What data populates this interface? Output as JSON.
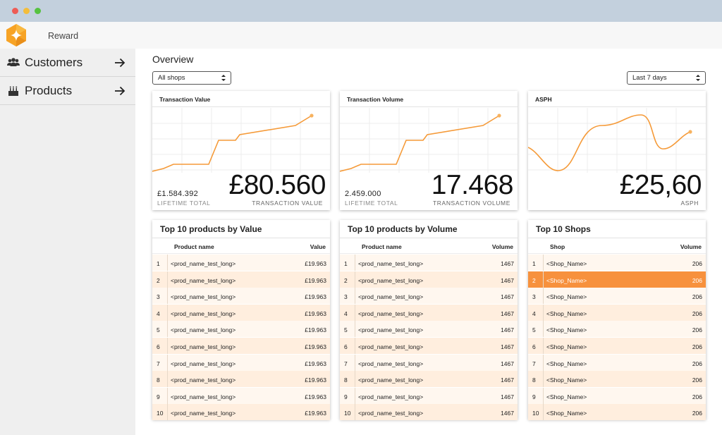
{
  "app": {
    "name": "Reward"
  },
  "sidebar": {
    "items": [
      {
        "label": "Customers",
        "icon": "users-icon"
      },
      {
        "label": "Products",
        "icon": "cake-icon"
      }
    ]
  },
  "page": {
    "title": "Overview"
  },
  "filters": {
    "shops": "All shops",
    "range": "Last 7 days"
  },
  "colors": {
    "accent": "#f7913d",
    "line": "#f59a38",
    "row_light": "#fff7ef",
    "row_dark": "#ffeede"
  },
  "kpis": [
    {
      "title": "Transaction Value",
      "value": "£80.560",
      "label": "TRANSACTION VALUE",
      "lifetime_value": "£1.584.392",
      "lifetime_label": "LIFETIME TOTAL"
    },
    {
      "title": "Transaction Volume",
      "value": "17.468",
      "label": "TRANSACTION VOLUME",
      "lifetime_value": "2.459.000",
      "lifetime_label": "LIFETIME TOTAL"
    },
    {
      "title": "ASPH",
      "value": "£25,60",
      "label": "ASPH"
    }
  ],
  "tables": [
    {
      "title": "Top 10 products by Value",
      "col_name": "Product name",
      "col_value": "Value",
      "rows": [
        {
          "idx": "1",
          "name": "<prod_name_test_long>",
          "value": "£19.963"
        },
        {
          "idx": "2",
          "name": "<prod_name_test_long>",
          "value": "£19.963"
        },
        {
          "idx": "3",
          "name": "<prod_name_test_long>",
          "value": "£19.963"
        },
        {
          "idx": "4",
          "name": "<prod_name_test_long>",
          "value": "£19.963"
        },
        {
          "idx": "5",
          "name": "<prod_name_test_long>",
          "value": "£19.963"
        },
        {
          "idx": "6",
          "name": "<prod_name_test_long>",
          "value": "£19.963"
        },
        {
          "idx": "7",
          "name": "<prod_name_test_long>",
          "value": "£19.963"
        },
        {
          "idx": "8",
          "name": "<prod_name_test_long>",
          "value": "£19.963"
        },
        {
          "idx": "9",
          "name": "<prod_name_test_long>",
          "value": "£19.963"
        },
        {
          "idx": "10",
          "name": "<prod_name_test_long>",
          "value": "£19.963"
        }
      ]
    },
    {
      "title": "Top 10 products by Volume",
      "col_name": "Product name",
      "col_value": "Volume",
      "rows": [
        {
          "idx": "1",
          "name": "<prod_name_test_long>",
          "value": "1467"
        },
        {
          "idx": "2",
          "name": "<prod_name_test_long>",
          "value": "1467"
        },
        {
          "idx": "3",
          "name": "<prod_name_test_long>",
          "value": "1467"
        },
        {
          "idx": "4",
          "name": "<prod_name_test_long>",
          "value": "1467"
        },
        {
          "idx": "5",
          "name": "<prod_name_test_long>",
          "value": "1467"
        },
        {
          "idx": "6",
          "name": "<prod_name_test_long>",
          "value": "1467"
        },
        {
          "idx": "7",
          "name": "<prod_name_test_long>",
          "value": "1467"
        },
        {
          "idx": "8",
          "name": "<prod_name_test_long>",
          "value": "1467"
        },
        {
          "idx": "9",
          "name": "<prod_name_test_long>",
          "value": "1467"
        },
        {
          "idx": "10",
          "name": "<prod_name_test_long>",
          "value": "1467"
        }
      ]
    },
    {
      "title": "Top 10 Shops",
      "col_name": "Shop",
      "col_value": "Volume",
      "highlighted_row": "2",
      "rows": [
        {
          "idx": "1",
          "name": "<Shop_Name>",
          "value": "206"
        },
        {
          "idx": "2",
          "name": "<Shop_Name>",
          "value": "206"
        },
        {
          "idx": "3",
          "name": "<Shop_Name>",
          "value": "206"
        },
        {
          "idx": "4",
          "name": "<Shop_Name>",
          "value": "206"
        },
        {
          "idx": "5",
          "name": "<Shop_Name>",
          "value": "206"
        },
        {
          "idx": "6",
          "name": "<Shop_Name>",
          "value": "206"
        },
        {
          "idx": "7",
          "name": "<Shop_Name>",
          "value": "206"
        },
        {
          "idx": "8",
          "name": "<Shop_Name>",
          "value": "206"
        },
        {
          "idx": "9",
          "name": "<Shop_Name>",
          "value": "206"
        },
        {
          "idx": "10",
          "name": "<Shop_Name>",
          "value": "206"
        }
      ]
    }
  ]
}
